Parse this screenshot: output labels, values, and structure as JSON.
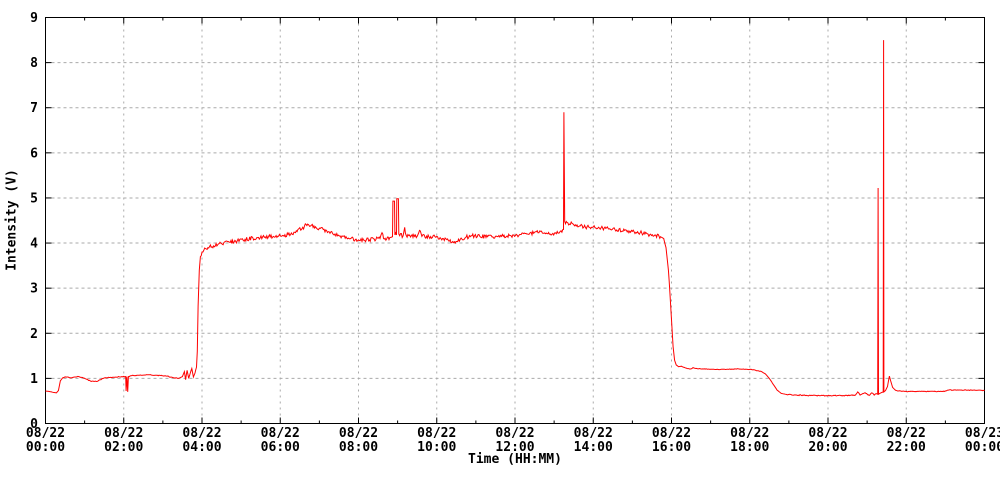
{
  "chart_data": {
    "type": "line",
    "title": "",
    "xlabel": "Time (HH:MM)",
    "ylabel": "Intensity (V)",
    "xlim_hours": [
      0,
      24
    ],
    "ylim": [
      0,
      9
    ],
    "grid": true,
    "grid_color": "#aaaaaa",
    "line_color": "#ff0000",
    "axis_color": "#000000",
    "background_color": "#ffffff",
    "x_major_ticks_hours": [
      0,
      2,
      4,
      6,
      8,
      10,
      12,
      14,
      16,
      18,
      20,
      22,
      24
    ],
    "x_minor_ticks_hours": [
      1,
      3,
      5,
      7,
      9,
      11,
      13,
      15,
      17,
      19,
      21,
      23
    ],
    "x_tick_labels": [
      {
        "date": "08/22",
        "time": "00:00"
      },
      {
        "date": "08/22",
        "time": "02:00"
      },
      {
        "date": "08/22",
        "time": "04:00"
      },
      {
        "date": "08/22",
        "time": "06:00"
      },
      {
        "date": "08/22",
        "time": "08:00"
      },
      {
        "date": "08/22",
        "time": "10:00"
      },
      {
        "date": "08/22",
        "time": "12:00"
      },
      {
        "date": "08/22",
        "time": "14:00"
      },
      {
        "date": "08/22",
        "time": "16:00"
      },
      {
        "date": "08/22",
        "time": "18:00"
      },
      {
        "date": "08/22",
        "time": "20:00"
      },
      {
        "date": "08/22",
        "time": "22:00"
      },
      {
        "date": "08/23",
        "time": "00:00"
      }
    ],
    "y_ticks": [
      0,
      1,
      2,
      3,
      4,
      5,
      6,
      7,
      8,
      9
    ],
    "series": [
      {
        "name": "intensity",
        "points": [
          [
            0,
            0.72
          ],
          [
            0.1,
            0.71
          ],
          [
            0.2,
            0.69
          ],
          [
            0.28,
            0.68
          ],
          [
            0.33,
            0.73
          ],
          [
            0.38,
            0.95
          ],
          [
            0.45,
            1.02
          ],
          [
            0.55,
            1.03
          ],
          [
            0.65,
            1.01
          ],
          [
            0.75,
            1.03
          ],
          [
            0.85,
            1.04
          ],
          [
            0.95,
            1.02
          ],
          [
            1.05,
            0.98
          ],
          [
            1.15,
            0.94
          ],
          [
            1.3,
            0.93
          ],
          [
            1.4,
            0.97
          ],
          [
            1.5,
            1.01
          ],
          [
            1.65,
            1.02
          ],
          [
            1.8,
            1.03
          ],
          [
            1.95,
            1.04
          ],
          [
            2.05,
            1.04
          ],
          [
            2.06,
            0.72
          ],
          [
            2.08,
            1.04
          ],
          [
            2.1,
            0.7
          ],
          [
            2.12,
            1.04
          ],
          [
            2.2,
            1.06
          ],
          [
            2.4,
            1.07
          ],
          [
            2.6,
            1.08
          ],
          [
            2.8,
            1.07
          ],
          [
            3.0,
            1.06
          ],
          [
            3.1,
            1.05
          ],
          [
            3.25,
            1.02
          ],
          [
            3.4,
            1.0
          ],
          [
            3.5,
            1.04
          ],
          [
            3.55,
            1.15
          ],
          [
            3.58,
            0.97
          ],
          [
            3.62,
            1.18
          ],
          [
            3.66,
            1.0
          ],
          [
            3.7,
            1.12
          ],
          [
            3.74,
            1.22
          ],
          [
            3.78,
            1.03
          ],
          [
            3.82,
            1.12
          ],
          [
            3.86,
            1.25
          ],
          [
            3.88,
            1.6
          ],
          [
            3.9,
            2.6
          ],
          [
            3.93,
            3.4
          ],
          [
            3.96,
            3.7
          ],
          [
            4.0,
            3.8
          ],
          [
            4.05,
            3.85
          ],
          [
            4.15,
            3.9
          ],
          [
            4.3,
            3.94
          ],
          [
            4.5,
            3.99
          ],
          [
            4.7,
            4.02
          ],
          [
            4.9,
            4.05
          ],
          [
            5.1,
            4.08
          ],
          [
            5.4,
            4.12
          ],
          [
            5.7,
            4.14
          ],
          [
            6.0,
            4.16
          ],
          [
            6.2,
            4.19
          ],
          [
            6.35,
            4.24
          ],
          [
            6.45,
            4.3
          ],
          [
            6.5,
            4.34
          ],
          [
            6.55,
            4.31
          ],
          [
            6.62,
            4.38
          ],
          [
            6.7,
            4.42
          ],
          [
            6.8,
            4.4
          ],
          [
            6.9,
            4.36
          ],
          [
            7.0,
            4.33
          ],
          [
            7.1,
            4.3
          ],
          [
            7.25,
            4.25
          ],
          [
            7.4,
            4.2
          ],
          [
            7.6,
            4.15
          ],
          [
            7.8,
            4.1
          ],
          [
            8.0,
            4.07
          ],
          [
            8.2,
            4.07
          ],
          [
            8.4,
            4.09
          ],
          [
            8.55,
            4.1
          ],
          [
            8.6,
            4.23
          ],
          [
            8.64,
            4.1
          ],
          [
            8.8,
            4.12
          ],
          [
            8.87,
            4.14
          ],
          [
            8.88,
            4.93
          ],
          [
            8.92,
            4.93
          ],
          [
            8.93,
            4.18
          ],
          [
            8.97,
            4.18
          ],
          [
            8.98,
            4.98
          ],
          [
            9.02,
            4.98
          ],
          [
            9.03,
            4.2
          ],
          [
            9.14,
            4.16
          ],
          [
            9.18,
            4.35
          ],
          [
            9.22,
            4.17
          ],
          [
            9.35,
            4.16
          ],
          [
            9.5,
            4.15
          ],
          [
            9.58,
            4.27
          ],
          [
            9.62,
            4.15
          ],
          [
            9.8,
            4.14
          ],
          [
            10.0,
            4.15
          ],
          [
            10.15,
            4.1
          ],
          [
            10.3,
            4.05
          ],
          [
            10.45,
            4.03
          ],
          [
            10.6,
            4.08
          ],
          [
            10.75,
            4.13
          ],
          [
            10.9,
            4.16
          ],
          [
            11.1,
            4.15
          ],
          [
            11.3,
            4.14
          ],
          [
            11.5,
            4.15
          ],
          [
            11.7,
            4.15
          ],
          [
            11.9,
            4.16
          ],
          [
            12.1,
            4.17
          ],
          [
            12.3,
            4.2
          ],
          [
            12.5,
            4.24
          ],
          [
            12.7,
            4.22
          ],
          [
            12.9,
            4.2
          ],
          [
            13.1,
            4.22
          ],
          [
            13.2,
            4.24
          ],
          [
            13.24,
            4.3
          ],
          [
            13.25,
            6.9
          ],
          [
            13.27,
            4.48
          ],
          [
            13.35,
            4.45
          ],
          [
            13.5,
            4.41
          ],
          [
            13.65,
            4.38
          ],
          [
            13.8,
            4.35
          ],
          [
            14.0,
            4.36
          ],
          [
            14.2,
            4.34
          ],
          [
            14.4,
            4.31
          ],
          [
            14.6,
            4.29
          ],
          [
            14.8,
            4.28
          ],
          [
            15.0,
            4.26
          ],
          [
            15.2,
            4.23
          ],
          [
            15.4,
            4.2
          ],
          [
            15.6,
            4.17
          ],
          [
            15.72,
            4.14
          ],
          [
            15.8,
            4.1
          ],
          [
            15.86,
            3.9
          ],
          [
            15.92,
            3.4
          ],
          [
            15.96,
            2.9
          ],
          [
            16.0,
            2.3
          ],
          [
            16.04,
            1.7
          ],
          [
            16.08,
            1.4
          ],
          [
            16.12,
            1.3
          ],
          [
            16.18,
            1.26
          ],
          [
            16.25,
            1.27
          ],
          [
            16.3,
            1.25
          ],
          [
            16.4,
            1.22
          ],
          [
            16.5,
            1.21
          ],
          [
            16.55,
            1.24
          ],
          [
            16.62,
            1.22
          ],
          [
            16.8,
            1.21
          ],
          [
            17.1,
            1.2
          ],
          [
            17.4,
            1.2
          ],
          [
            17.7,
            1.21
          ],
          [
            18.0,
            1.2
          ],
          [
            18.15,
            1.18
          ],
          [
            18.3,
            1.15
          ],
          [
            18.4,
            1.1
          ],
          [
            18.5,
            1.0
          ],
          [
            18.6,
            0.87
          ],
          [
            18.7,
            0.74
          ],
          [
            18.8,
            0.67
          ],
          [
            18.95,
            0.64
          ],
          [
            19.2,
            0.63
          ],
          [
            19.6,
            0.62
          ],
          [
            20.0,
            0.62
          ],
          [
            20.4,
            0.62
          ],
          [
            20.7,
            0.63
          ],
          [
            20.76,
            0.7
          ],
          [
            20.82,
            0.63
          ],
          [
            20.95,
            0.68
          ],
          [
            21.05,
            0.62
          ],
          [
            21.12,
            0.68
          ],
          [
            21.18,
            0.63
          ],
          [
            21.24,
            0.66
          ],
          [
            21.27,
            0.65
          ],
          [
            21.28,
            5.22
          ],
          [
            21.29,
            0.65
          ],
          [
            21.33,
            0.67
          ],
          [
            21.38,
            0.69
          ],
          [
            21.41,
            0.7
          ],
          [
            21.42,
            8.5
          ],
          [
            21.43,
            0.7
          ],
          [
            21.47,
            0.73
          ],
          [
            21.52,
            0.82
          ],
          [
            21.57,
            1.05
          ],
          [
            21.6,
            0.95
          ],
          [
            21.65,
            0.8
          ],
          [
            21.72,
            0.74
          ],
          [
            21.8,
            0.72
          ],
          [
            22.0,
            0.71
          ],
          [
            22.3,
            0.71
          ],
          [
            22.6,
            0.71
          ],
          [
            22.9,
            0.71
          ],
          [
            23.0,
            0.72
          ],
          [
            23.06,
            0.74
          ],
          [
            23.3,
            0.74
          ],
          [
            23.6,
            0.74
          ],
          [
            23.85,
            0.74
          ],
          [
            24.0,
            0.73
          ]
        ]
      }
    ],
    "noise_segments": [
      {
        "from": 0.4,
        "to": 3.45,
        "amp": 0.008
      },
      {
        "from": 3.97,
        "to": 15.78,
        "amp": 0.045
      },
      {
        "from": 16.45,
        "to": 18.3,
        "amp": 0.006
      },
      {
        "from": 18.95,
        "to": 21.25,
        "amp": 0.01
      },
      {
        "from": 21.7,
        "to": 24,
        "amp": 0.007
      }
    ]
  }
}
